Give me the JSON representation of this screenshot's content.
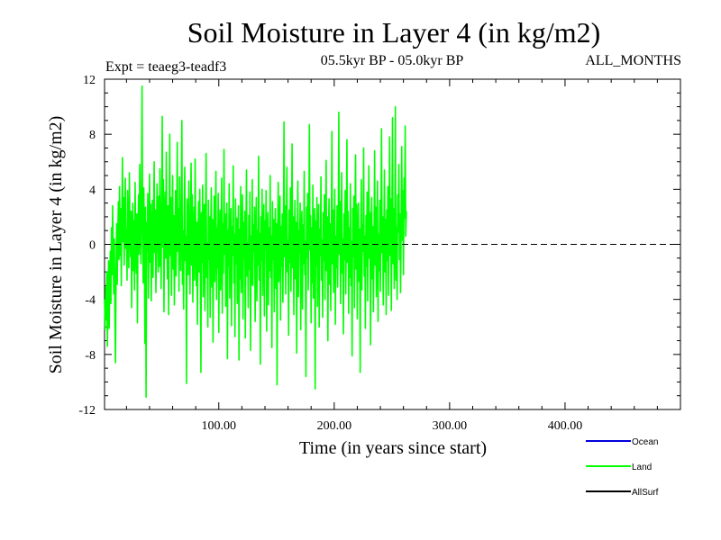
{
  "chart_data": {
    "type": "line",
    "title": "Soil Moisture in Layer 4 (in kg/m2)",
    "subtitle_left": "Expt = teaeg3-teadf3",
    "subtitle_center": "05.5kyr BP - 05.0kyr BP",
    "subtitle_right": "ALL_MONTHS",
    "xlabel": "Time (in years since start)",
    "ylabel": "Soil Moisture in Layer 4 (in kg/m2)",
    "xlim": [
      1,
      500
    ],
    "ylim": [
      -12,
      12
    ],
    "x_ticks": [
      100,
      200,
      300,
      400
    ],
    "x_tick_labels": [
      "100.00",
      "200.00",
      "300.00",
      "400.00"
    ],
    "y_ticks": [
      -12,
      -8,
      -4,
      0,
      4,
      8,
      12
    ],
    "y_tick_labels": [
      "-12",
      "-8",
      "-4",
      "0",
      "4",
      "8",
      "12"
    ],
    "zero_line": true,
    "series": [
      {
        "name": "Land",
        "color": "#00ff00",
        "x_start": 1,
        "x_step": 0.5,
        "values": [
          -4.0,
          -6.2,
          -3.1,
          -5.5,
          -2.0,
          -7.4,
          -3.8,
          -1.2,
          -6.1,
          -2.7,
          -0.5,
          -4.3,
          1.2,
          -2.2,
          2.8,
          -1.0,
          -3.6,
          0.4,
          -5.2,
          -8.6,
          -1.8,
          1.5,
          -2.9,
          0.7,
          3.1,
          -1.1,
          4.2,
          -0.8,
          2.6,
          -3.0,
          1.9,
          6.3,
          0.2,
          3.4,
          -1.5,
          2.0,
          4.8,
          -0.3,
          1.1,
          -2.6,
          3.9,
          0.8,
          -1.7,
          5.2,
          1.3,
          -0.9,
          2.4,
          -4.6,
          0.6,
          3.0,
          -1.9,
          1.7,
          -3.3,
          4.5,
          0.1,
          -2.1,
          2.2,
          -5.7,
          1.4,
          3.6,
          -0.7,
          5.8,
          2.1,
          -1.4,
          3.3,
          11.5,
          1.0,
          -2.8,
          4.1,
          0.9,
          -7.2,
          2.7,
          -11.1,
          1.6,
          -0.4,
          3.7,
          -3.9,
          0.3,
          5.1,
          -1.3,
          2.9,
          -4.1,
          0.5,
          3.2,
          -2.4,
          1.8,
          6.0,
          -0.6,
          2.5,
          -3.5,
          0.0,
          4.4,
          1.2,
          -2.0,
          3.5,
          -1.6,
          5.5,
          0.7,
          -3.2,
          2.3,
          9.3,
          -0.2,
          4.7,
          -4.9,
          1.9,
          3.8,
          -1.0,
          6.7,
          0.4,
          -2.5,
          2.8,
          -5.1,
          1.5,
          8.0,
          -0.8,
          3.4,
          -3.7,
          0.9,
          5.0,
          -1.8,
          2.1,
          -4.4,
          0.2,
          3.9,
          -2.3,
          1.3,
          7.4,
          -0.5,
          2.6,
          -3.4,
          4.9,
          0.8,
          -1.9,
          3.0,
          9.0,
          -2.9,
          1.0,
          -4.7,
          2.4,
          5.6,
          -1.2,
          0.6,
          -10.1,
          3.3,
          1.7,
          -2.2,
          4.6,
          0.3,
          -3.6,
          2.0,
          5.9,
          -1.5,
          3.6,
          -4.2,
          0.4,
          2.7,
          -2.6,
          6.2,
          1.1,
          -3.0,
          1.6,
          -5.8,
          0.7,
          3.1,
          -2.0,
          4.0,
          -0.6,
          -9.3,
          2.3,
          -1.3,
          4.3,
          -3.8,
          0.9,
          2.9,
          -4.8,
          1.4,
          6.6,
          -2.4,
          0.1,
          -6.0,
          3.2,
          -1.1,
          2.0,
          -5.3,
          0.6,
          4.1,
          -3.1,
          1.8,
          -7.1,
          -0.4,
          3.5,
          -2.7,
          0.8,
          5.3,
          -4.0,
          1.2,
          -1.7,
          3.7,
          -6.4,
          0.3,
          2.5,
          -3.3,
          -0.9,
          4.8,
          -5.0,
          1.5,
          -2.1,
          6.9,
          -0.7,
          2.2,
          -4.5,
          0.5,
          3.0,
          -8.3,
          1.0,
          -1.6,
          4.4,
          -3.9,
          0.2,
          2.6,
          -5.9,
          1.3,
          -0.8,
          5.7,
          -2.8,
          0.7,
          -6.7,
          3.3,
          -1.4,
          1.9,
          -4.3,
          0.4,
          2.8,
          -8.4,
          1.1,
          -2.5,
          4.2,
          -3.5,
          0.0,
          3.6,
          -5.4,
          1.6,
          -1.0,
          2.4,
          -6.8,
          0.9,
          5.4,
          -2.3,
          0.1,
          -4.6,
          2.1,
          -1.8,
          3.8,
          -7.7,
          0.6,
          -2.9,
          4.7,
          -3.0,
          1.4,
          -0.5,
          2.7,
          -5.6,
          0.3,
          3.4,
          -4.1,
          1.0,
          -1.5,
          6.4,
          -2.6,
          0.8,
          -8.7,
          2.0,
          -1.2,
          4.0,
          -3.7,
          0.5,
          2.9,
          -5.2,
          1.7,
          -0.3,
          3.9,
          -6.3,
          0.2,
          2.3,
          -4.4,
          1.2,
          -1.9,
          5.0,
          -2.4,
          0.6,
          -7.5,
          3.1,
          -1.1,
          1.8,
          -4.9,
          0.4,
          2.6,
          -3.2,
          1.5,
          -10.2,
          0.9,
          4.5,
          -2.7,
          0.0,
          3.5,
          -5.5,
          1.3,
          -1.6,
          2.2,
          -4.2,
          0.7,
          8.9,
          -0.9,
          2.8,
          -3.6,
          1.1,
          5.6,
          -2.0,
          0.3,
          -6.6,
          2.5,
          -1.3,
          4.1,
          -3.4,
          0.8,
          7.3,
          -1.7,
          2.0,
          -5.1,
          0.5,
          3.2,
          -2.5,
          1.6,
          -7.9,
          0.1,
          4.6,
          -3.8,
          1.0,
          -0.6,
          3.0,
          -6.2,
          0.6,
          2.4,
          -4.7,
          1.4,
          -1.4,
          5.3,
          -2.2,
          0.2,
          -9.6,
          2.7,
          -1.0,
          3.7,
          -3.3,
          0.9,
          8.7,
          -0.4,
          2.1,
          -5.7,
          1.2,
          -2.8,
          4.3,
          -3.9,
          0.4,
          2.6,
          -10.5,
          1.7,
          -1.5,
          3.4,
          -4.5,
          0.7,
          2.9,
          -6.0,
          1.1,
          -0.8,
          4.9,
          -2.6,
          0.3,
          -5.3,
          2.3,
          -1.2,
          3.6,
          -4.0,
          0.8,
          6.1,
          -1.9,
          2.0,
          -7.0,
          0.5,
          3.3,
          -2.9,
          1.5,
          -4.8,
          0.0,
          8.2,
          -1.4,
          2.5,
          -3.5,
          1.0,
          4.0,
          -5.8,
          0.6,
          -1.7,
          2.8,
          -3.1,
          1.3,
          9.6,
          -0.7,
          3.1,
          -4.3,
          0.9,
          5.2,
          -2.1,
          0.4,
          -6.5,
          2.2,
          -1.1,
          3.9,
          -3.6,
          0.7,
          7.6,
          -1.3,
          2.4,
          -5.0,
          1.2,
          -2.4,
          4.4,
          -3.0,
          0.2,
          -8.1,
          2.6,
          -0.9,
          3.5,
          -4.6,
          1.6,
          6.5,
          -1.8,
          2.9,
          -5.4,
          0.8,
          3.0,
          -2.7,
          1.1,
          -9.3,
          0.3,
          4.7,
          -3.3,
          1.4,
          -0.5,
          7.0,
          -2.3,
          0.6,
          -6.1,
          2.1,
          -1.6,
          3.8,
          -4.1,
          0.9,
          5.7,
          -1.0,
          2.3,
          -7.3,
          0.5,
          3.4,
          -2.5,
          1.3,
          -4.9,
          0.1,
          6.8,
          -1.5,
          2.7,
          -3.8,
          1.0,
          4.6,
          -5.6,
          0.7,
          -1.9,
          3.2,
          -3.4,
          1.5,
          8.4,
          -0.6,
          2.0,
          -4.4,
          0.4,
          5.4,
          -2.0,
          1.8,
          -5.1,
          2.5,
          -1.2,
          4.2,
          -3.7,
          0.8,
          7.8,
          -0.8,
          3.3,
          -4.8,
          1.7,
          9.2,
          -1.4,
          2.6,
          -3.2,
          0.5,
          10.0,
          -2.6,
          1.2,
          -4.0,
          3.6,
          0.9,
          5.8,
          -1.1,
          2.2,
          -3.5,
          1.4,
          7.1,
          0.3,
          3.9,
          -2.2,
          4.8,
          1.9,
          8.6,
          0.6,
          2.4
        ]
      }
    ],
    "legend": {
      "position": "bottom-right",
      "entries": [
        {
          "name": "Ocean",
          "color": "#0000dd"
        },
        {
          "name": "Land",
          "color": "#00ff00"
        },
        {
          "name": "AllSurf",
          "color": "#000000"
        }
      ]
    }
  }
}
